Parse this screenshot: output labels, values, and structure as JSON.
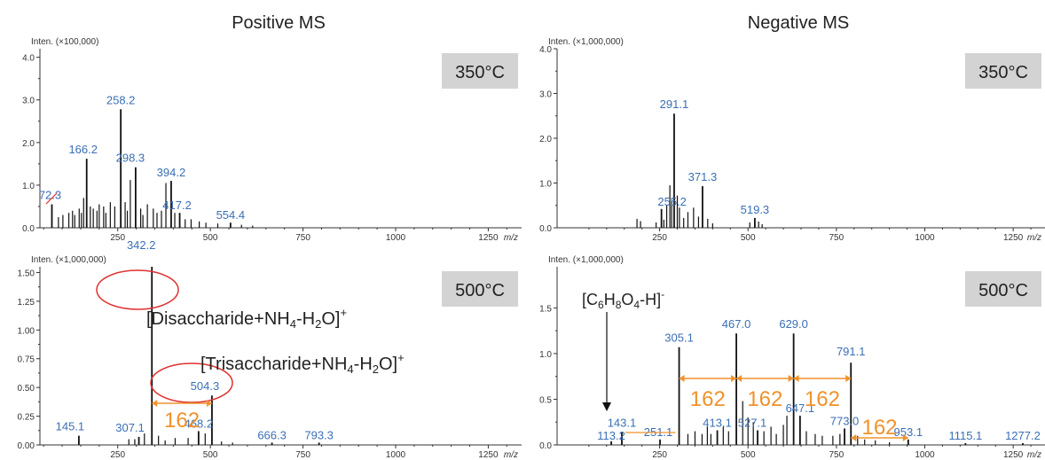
{
  "colors": {
    "peak_label": "#3a6fb5",
    "annotation": "#f0922b",
    "circle": "#e03030",
    "badge_bg": "#d3d3d3",
    "stick": "#111111"
  },
  "headers": {
    "positive": "Positive MS",
    "negative": "Negative MS"
  },
  "chart_data": [
    {
      "type": "bar",
      "title": "350°C",
      "ylabel": "Inten. (×100,000)",
      "xlabel": "m/z",
      "xlim": [
        40,
        1340
      ],
      "ylim": [
        0,
        4.2
      ],
      "xticks": [
        250,
        500,
        750,
        1000,
        1250
      ],
      "yticks": [
        0.0,
        1.0,
        2.0,
        3.0,
        4.0
      ],
      "ytick_labels": [
        "0.0",
        "1.0",
        "2.0",
        "3.0",
        "4.0"
      ],
      "peaks": [
        {
          "mz": 72.3,
          "i": 0.55,
          "label": "72.3"
        },
        {
          "mz": 166.2,
          "i": 1.62,
          "label": "166.2"
        },
        {
          "mz": 258.2,
          "i": 2.78,
          "label": "258.2"
        },
        {
          "mz": 298.3,
          "i": 1.42,
          "label": "298.3"
        },
        {
          "mz": 394.2,
          "i": 1.1,
          "label": "394.2"
        },
        {
          "mz": 417.2,
          "i": 0.35,
          "label": "417.2"
        },
        {
          "mz": 554.4,
          "i": 0.12,
          "label": "554.4"
        },
        {
          "mz": 90,
          "i": 0.25
        },
        {
          "mz": 102,
          "i": 0.3
        },
        {
          "mz": 118,
          "i": 0.35
        },
        {
          "mz": 128,
          "i": 0.4
        },
        {
          "mz": 134,
          "i": 0.3
        },
        {
          "mz": 146,
          "i": 0.45
        },
        {
          "mz": 152,
          "i": 0.35
        },
        {
          "mz": 158,
          "i": 0.7
        },
        {
          "mz": 176,
          "i": 0.5
        },
        {
          "mz": 184,
          "i": 0.45
        },
        {
          "mz": 194,
          "i": 0.4
        },
        {
          "mz": 200,
          "i": 0.55
        },
        {
          "mz": 212,
          "i": 0.5
        },
        {
          "mz": 218,
          "i": 0.35
        },
        {
          "mz": 230,
          "i": 0.6
        },
        {
          "mz": 242,
          "i": 0.5
        },
        {
          "mz": 270,
          "i": 0.6
        },
        {
          "mz": 276,
          "i": 0.4
        },
        {
          "mz": 284,
          "i": 1.12
        },
        {
          "mz": 312,
          "i": 0.45
        },
        {
          "mz": 318,
          "i": 0.3
        },
        {
          "mz": 330,
          "i": 0.55
        },
        {
          "mz": 346,
          "i": 0.45
        },
        {
          "mz": 356,
          "i": 0.35
        },
        {
          "mz": 368,
          "i": 0.4
        },
        {
          "mz": 380,
          "i": 1.05
        },
        {
          "mz": 404,
          "i": 0.35
        },
        {
          "mz": 432,
          "i": 0.2
        },
        {
          "mz": 448,
          "i": 0.2
        },
        {
          "mz": 470,
          "i": 0.15
        },
        {
          "mz": 488,
          "i": 0.12
        },
        {
          "mz": 520,
          "i": 0.1
        },
        {
          "mz": 584,
          "i": 0.07
        },
        {
          "mz": 614,
          "i": 0.05
        }
      ],
      "series": [
        {
          "values": [
            0.55,
            1.62,
            2.78,
            1.42,
            1.1,
            0.35,
            0.12
          ]
        }
      ]
    },
    {
      "type": "bar",
      "title": "350°C",
      "ylabel": "Inten. (×1,000,000)",
      "xlabel": "m/z",
      "xlim": [
        -40,
        1340
      ],
      "ylim": [
        0,
        4.0
      ],
      "xticks": [
        250,
        500,
        750,
        1000,
        1250
      ],
      "yticks": [
        0.0,
        1.0,
        2.0,
        3.0,
        4.0
      ],
      "ytick_labels": [
        "0.0",
        "1.0",
        "2.0",
        "3.0",
        "4.0"
      ],
      "peaks": [
        {
          "mz": 255.2,
          "i": 0.42,
          "label": "255.2"
        },
        {
          "mz": 291.1,
          "i": 2.55,
          "label": "291.1"
        },
        {
          "mz": 371.3,
          "i": 0.93,
          "label": "371.3"
        },
        {
          "mz": 519.3,
          "i": 0.22,
          "label": "519.3"
        },
        {
          "mz": 186,
          "i": 0.2
        },
        {
          "mz": 196,
          "i": 0.15
        },
        {
          "mz": 240,
          "i": 0.12
        },
        {
          "mz": 262,
          "i": 0.18
        },
        {
          "mz": 270,
          "i": 0.5
        },
        {
          "mz": 279,
          "i": 0.95
        },
        {
          "mz": 284,
          "i": 0.6
        },
        {
          "mz": 300,
          "i": 0.72
        },
        {
          "mz": 306,
          "i": 0.45
        },
        {
          "mz": 318,
          "i": 0.22
        },
        {
          "mz": 330,
          "i": 0.35
        },
        {
          "mz": 346,
          "i": 0.45
        },
        {
          "mz": 360,
          "i": 0.25
        },
        {
          "mz": 386,
          "i": 0.2
        },
        {
          "mz": 400,
          "i": 0.1
        },
        {
          "mz": 505,
          "i": 0.12
        },
        {
          "mz": 530,
          "i": 0.14
        },
        {
          "mz": 540,
          "i": 0.08
        }
      ],
      "series": [
        {
          "values": [
            0.42,
            2.55,
            0.93,
            0.22
          ]
        }
      ]
    },
    {
      "type": "bar",
      "title": "500°C",
      "ylabel": "Inten. (×1,000,000)",
      "xlabel": "m/z",
      "xlim": [
        40,
        1340
      ],
      "ylim": [
        0,
        1.55
      ],
      "xticks": [
        250,
        500,
        750,
        1000,
        1250
      ],
      "yticks": [
        0.0,
        0.25,
        0.5,
        0.75,
        1.0,
        1.25,
        1.5
      ],
      "ytick_labels": [
        "0.00",
        "0.25",
        "0.50",
        "0.75",
        "1.00",
        "1.25",
        "1.50"
      ],
      "peaks": [
        {
          "mz": 145.1,
          "i": 0.08,
          "label": "145.1"
        },
        {
          "mz": 307.1,
          "i": 0.07,
          "label": "307.1"
        },
        {
          "mz": 342.2,
          "i": 1.55,
          "label": "342.2"
        },
        {
          "mz": 468.2,
          "i": 0.12,
          "label": "468.2"
        },
        {
          "mz": 504.3,
          "i": 0.43,
          "label": "504.3"
        },
        {
          "mz": 666.3,
          "i": 0.02,
          "label": "666.3"
        },
        {
          "mz": 793.3,
          "i": 0.02,
          "label": "793.3"
        },
        {
          "mz": 280,
          "i": 0.05
        },
        {
          "mz": 296,
          "i": 0.05
        },
        {
          "mz": 322,
          "i": 0.1
        },
        {
          "mz": 360,
          "i": 0.08
        },
        {
          "mz": 378,
          "i": 0.04
        },
        {
          "mz": 405,
          "i": 0.06
        },
        {
          "mz": 440,
          "i": 0.06
        },
        {
          "mz": 486,
          "i": 0.1
        },
        {
          "mz": 530,
          "i": 0.03
        },
        {
          "mz": 560,
          "i": 0.02
        }
      ],
      "series": [
        {
          "values": [
            0.08,
            0.07,
            1.55,
            0.12,
            0.43,
            0.02,
            0.02
          ]
        }
      ],
      "annotations": {
        "disaccharide": {
          "base": "[Disaccharide+NH",
          "sub1": "4",
          "mid": "-H",
          "sub2": "2",
          "tail": "O]",
          "sup": "+"
        },
        "trisaccharide": {
          "base": "[Trisaccharide+NH",
          "sub1": "4",
          "mid": "-H",
          "sub2": "2",
          "tail": "O]",
          "sup": "+"
        },
        "gap": "162",
        "gap_from": 342.2,
        "gap_to": 504.3
      }
    },
    {
      "type": "bar",
      "title": "500°C",
      "ylabel": "Inten. (×1,000,000)",
      "xlabel": "m/z",
      "xlim": [
        -40,
        1340
      ],
      "ylim": [
        0,
        1.95
      ],
      "xticks": [
        250,
        500,
        750,
        1000,
        1250
      ],
      "yticks": [
        0.0,
        0.5,
        1.0,
        1.5
      ],
      "ytick_labels": [
        "0.0",
        "0.5",
        "1.0",
        "1.5"
      ],
      "peaks": [
        {
          "mz": 113.2,
          "i": 0.04,
          "label": "113.2"
        },
        {
          "mz": 143.1,
          "i": 0.14,
          "label": "143.1"
        },
        {
          "mz": 251.1,
          "i": 0.06,
          "label": "251.1"
        },
        {
          "mz": 305.1,
          "i": 1.07,
          "label": "305.1"
        },
        {
          "mz": 413.1,
          "i": 0.16,
          "label": "413.1"
        },
        {
          "mz": 467.0,
          "i": 1.22,
          "label": "467.0"
        },
        {
          "mz": 527.1,
          "i": 0.16,
          "label": "527.1"
        },
        {
          "mz": 629.0,
          "i": 1.22,
          "label": "629.0"
        },
        {
          "mz": 647.1,
          "i": 0.32,
          "label": "647.1"
        },
        {
          "mz": 773.0,
          "i": 0.18,
          "label": "773.0"
        },
        {
          "mz": 791.1,
          "i": 0.9,
          "label": "791.1"
        },
        {
          "mz": 953.1,
          "i": 0.06,
          "label": "953.1"
        },
        {
          "mz": 1115.1,
          "i": 0.02,
          "label": "1115.1"
        },
        {
          "mz": 1277.2,
          "i": 0.02,
          "label": "1277.2"
        },
        {
          "mz": 330,
          "i": 0.12
        },
        {
          "mz": 350,
          "i": 0.15
        },
        {
          "mz": 370,
          "i": 0.12
        },
        {
          "mz": 385,
          "i": 0.2
        },
        {
          "mz": 395,
          "i": 0.12
        },
        {
          "mz": 430,
          "i": 0.2
        },
        {
          "mz": 445,
          "i": 0.15
        },
        {
          "mz": 485,
          "i": 0.48
        },
        {
          "mz": 500,
          "i": 0.3
        },
        {
          "mz": 515,
          "i": 0.25
        },
        {
          "mz": 545,
          "i": 0.15
        },
        {
          "mz": 565,
          "i": 0.2
        },
        {
          "mz": 580,
          "i": 0.12
        },
        {
          "mz": 600,
          "i": 0.22
        },
        {
          "mz": 610,
          "i": 0.32
        },
        {
          "mz": 665,
          "i": 0.15
        },
        {
          "mz": 690,
          "i": 0.12
        },
        {
          "mz": 710,
          "i": 0.1
        },
        {
          "mz": 740,
          "i": 0.1
        },
        {
          "mz": 760,
          "i": 0.12
        },
        {
          "mz": 810,
          "i": 0.1
        },
        {
          "mz": 830,
          "i": 0.06
        },
        {
          "mz": 860,
          "i": 0.05
        },
        {
          "mz": 900,
          "i": 0.03
        }
      ],
      "series": [
        {
          "values": [
            0.04,
            0.14,
            0.06,
            1.07,
            0.16,
            1.22,
            0.16,
            1.22,
            0.32,
            0.18,
            0.9,
            0.06,
            0.02,
            0.02
          ]
        }
      ],
      "annotations": {
        "ion": {
          "base": "[C",
          "s1": "6",
          "m1": "H",
          "s2": "8",
          "m2": "O",
          "s3": "4",
          "tail": "-H]",
          "sup": "-"
        },
        "gaps": [
          "162",
          "162",
          "162",
          "162"
        ],
        "gap_points": [
          305.1,
          467.0,
          629.0,
          791.1,
          953.1
        ]
      }
    }
  ]
}
